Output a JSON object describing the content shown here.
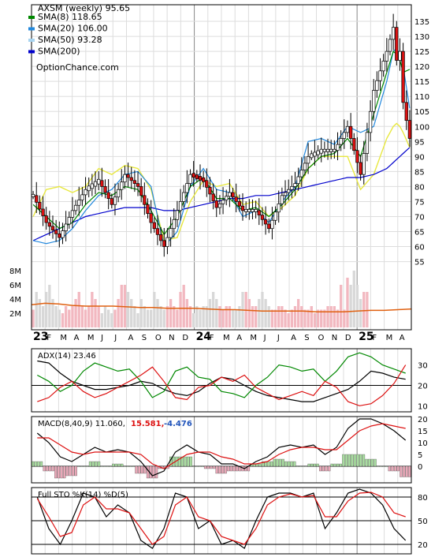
{
  "chart_data": {
    "type": "candlestick",
    "title": "AXSM (weekly) 95.65",
    "watermark": "OptionChance.com",
    "colors": {
      "up": "#ffffff",
      "down": "#dd1111",
      "up_highlight": "#c080d0",
      "sma8": "#008800",
      "sma20": "#2288dd",
      "sma50": "#e8e840",
      "sma200": "#0000cc",
      "volume_up": "#f2b8c0",
      "volume_down": "#d8d8d8",
      "volume_avg": "#e06010",
      "grid": "#dddddd",
      "axis": "#000000"
    },
    "legend": [
      {
        "label": "SMA(8) 118.65",
        "color": "#008800"
      },
      {
        "label": "SMA(20) 106.00",
        "color": "#2288dd"
      },
      {
        "label": "SMA(50) 93.28",
        "color": "#a8d4f0"
      },
      {
        "label": "SMA(200)",
        "color": "#0000cc"
      }
    ],
    "price_axis": {
      "ticks": [
        55,
        60,
        65,
        70,
        75,
        80,
        85,
        90,
        95,
        100,
        105,
        110,
        115,
        120,
        125,
        130,
        135
      ],
      "ylim": [
        52,
        140
      ]
    },
    "volume_axis": {
      "ticks": [
        "2M",
        "4M",
        "6M",
        "8M"
      ],
      "tick_values": [
        2,
        4,
        6,
        8
      ],
      "ylim": [
        0,
        9
      ]
    },
    "x_axis": {
      "labels": [
        "23",
        "F",
        "M",
        "A",
        "M",
        "J",
        "J",
        "A",
        "S",
        "O",
        "N",
        "D",
        "24",
        "F",
        "M",
        "A",
        "M",
        "J",
        "J",
        "A",
        "S",
        "O",
        "N",
        "D",
        "25",
        "F",
        "M",
        "A"
      ],
      "year_labels": [
        "23",
        "24",
        "25"
      ]
    },
    "price_week_index": [
      0,
      4,
      8,
      12,
      16,
      20,
      24,
      28,
      32,
      36,
      40,
      44,
      48,
      52,
      56,
      60,
      64,
      68,
      72,
      76,
      80,
      84,
      88,
      92,
      96,
      100,
      104,
      108,
      110,
      111,
      112,
      113,
      115
    ],
    "close": [
      77,
      68,
      63,
      72,
      79,
      82,
      74,
      84,
      80,
      68,
      60,
      72,
      84,
      82,
      73,
      78,
      72,
      72,
      66,
      77,
      81,
      90,
      92,
      92,
      100,
      84,
      112,
      125,
      133,
      122,
      125,
      108,
      96
    ],
    "sma8": [
      74,
      70,
      66,
      68,
      74,
      78,
      77,
      80,
      79,
      72,
      64,
      70,
      80,
      83,
      76,
      76,
      72,
      73,
      70,
      74,
      79,
      86,
      90,
      91,
      96,
      90,
      104,
      118,
      125,
      124,
      122,
      118,
      119
    ],
    "sma20": [
      62,
      61,
      62,
      66,
      72,
      77,
      79,
      84,
      85,
      80,
      60,
      65,
      80,
      86,
      79,
      78,
      70,
      72,
      68,
      75,
      80,
      95,
      96,
      94,
      100,
      98,
      100,
      115,
      125,
      126,
      124,
      120,
      106
    ],
    "sma50": [
      70,
      79,
      80,
      78,
      80,
      86,
      84,
      87,
      86,
      79,
      62,
      63,
      75,
      82,
      80,
      81,
      74,
      75,
      70,
      73,
      77,
      86,
      90,
      90,
      90,
      79,
      84,
      96,
      100,
      101,
      100,
      98,
      93
    ],
    "sma200": [
      62,
      64,
      66,
      68,
      70,
      71,
      72,
      73,
      73,
      73,
      72,
      72,
      73,
      74,
      75,
      76,
      76,
      77,
      77,
      78,
      79,
      80,
      81,
      82,
      83,
      83,
      84,
      86,
      88,
      89,
      90,
      91,
      93
    ],
    "volume_m": [
      2.5,
      5,
      4,
      3,
      5,
      6,
      4,
      3,
      2.5,
      2,
      3,
      2.5,
      3,
      4,
      5,
      3,
      2.5,
      3,
      5,
      4,
      3,
      2,
      3,
      2.5,
      2,
      2.5,
      4,
      6,
      6,
      5,
      4,
      3,
      2,
      4,
      3,
      2.5,
      2.5,
      5,
      4,
      3,
      2.5,
      3,
      4,
      3,
      2.5,
      5,
      6,
      4,
      3,
      2,
      3,
      2.5,
      3,
      3,
      4,
      5,
      4,
      3,
      2.5,
      3,
      3,
      2.5,
      2.5,
      3,
      5,
      5,
      4,
      3,
      3,
      4,
      5,
      4,
      3,
      2.5,
      2.5,
      3,
      3,
      2.5,
      2,
      2.5,
      3,
      4,
      3,
      2.5,
      2.5,
      3,
      2,
      2.5,
      2.5,
      2.5,
      3,
      3,
      3,
      2.5,
      6,
      2.5,
      7,
      6,
      8,
      6,
      4,
      5,
      5
    ],
    "volume_avg_m": [
      3.2,
      3.4,
      3.3,
      3.1,
      3.0,
      3.0,
      3.0,
      2.9,
      2.8,
      2.8,
      2.7,
      2.7,
      2.7,
      2.6,
      2.5,
      2.5,
      2.4,
      2.3,
      2.3,
      2.3,
      2.3,
      2.2,
      2.2,
      2.2,
      2.3,
      2.4,
      2.4,
      2.5,
      2.6
    ],
    "panels": [
      {
        "id": "adx",
        "label": "ADX(14) 23.46",
        "ticks": [
          10,
          20,
          30
        ],
        "ylim": [
          7,
          38
        ],
        "ref_lines": [
          20
        ],
        "series": [
          {
            "name": "ADX",
            "color": "#000000",
            "values": [
              32,
              31,
              26,
              22,
              20,
              18,
              18,
              19,
              20,
              22,
              21,
              18,
              16,
              15,
              17,
              21,
              24,
              23,
              20,
              17,
              15,
              14,
              13,
              12,
              12,
              14,
              16,
              18,
              22,
              27,
              26,
              24,
              23
            ]
          },
          {
            "name": "+DI",
            "color": "#008800",
            "values": [
              25,
              22,
              17,
              20,
              27,
              31,
              29,
              27,
              28,
              22,
              14,
              17,
              27,
              29,
              24,
              23,
              17,
              16,
              14,
              20,
              24,
              30,
              29,
              27,
              28,
              22,
              27,
              34,
              36,
              34,
              30,
              28,
              26
            ]
          },
          {
            "name": "-DI",
            "color": "#dd1111",
            "values": [
              12,
              14,
              19,
              22,
              17,
              14,
              16,
              19,
              22,
              25,
              29,
              22,
              14,
              13,
              19,
              20,
              24,
              22,
              25,
              19,
              16,
              13,
              15,
              17,
              15,
              22,
              19,
              12,
              10,
              11,
              15,
              21,
              30
            ]
          }
        ]
      },
      {
        "id": "macd",
        "label": "MACD(8,40,9) 11.060,",
        "label_signal": "15.581,",
        "label_hist": "-4.476",
        "label_signal_color": "#dd1111",
        "label_hist_color": "#2255bb",
        "ticks": [
          0,
          5,
          10,
          15,
          20
        ],
        "ylim": [
          -7,
          21
        ],
        "ref_lines": [
          0
        ],
        "series": [
          {
            "name": "MACD",
            "color": "#000000",
            "values": [
              14,
              10,
              4,
              2,
              5,
              8,
              6,
              7,
              6,
              2,
              -4,
              -2,
              6,
              9,
              6,
              5,
              1,
              1,
              -1,
              2,
              4,
              8,
              9,
              8,
              9,
              5,
              8,
              16,
              20,
              20,
              18,
              15,
              11
            ]
          },
          {
            "name": "Signal",
            "color": "#dd1111",
            "values": [
              12,
              12,
              9,
              6,
              5,
              6,
              6,
              6,
              6,
              5,
              1,
              -1,
              2,
              5,
              6,
              6,
              4,
              3,
              1,
              1,
              2,
              5,
              7,
              8,
              8,
              7,
              7,
              11,
              15,
              17,
              18,
              17,
              16
            ]
          }
        ],
        "histogram": [
          2,
          -2,
          -5,
          -4,
          0,
          2,
          0,
          1,
          0,
          -3,
          -5,
          -1,
          4,
          4,
          0,
          -1,
          -3,
          -2,
          -2,
          1,
          2,
          3,
          2,
          0,
          1,
          -2,
          1,
          5,
          5,
          3,
          0,
          -2,
          -4.5
        ]
      },
      {
        "id": "sto",
        "label": "Full STO %K(14) %D(5)",
        "ticks": [
          20,
          50,
          80
        ],
        "ylim": [
          8,
          92
        ],
        "ref_lines": [
          20,
          50,
          80
        ],
        "series": [
          {
            "name": "%K",
            "color": "#000000",
            "values": [
              80,
              40,
              20,
              50,
              85,
              80,
              55,
              70,
              60,
              25,
              15,
              40,
              85,
              80,
              40,
              50,
              20,
              25,
              15,
              50,
              80,
              85,
              85,
              80,
              85,
              40,
              60,
              85,
              90,
              85,
              70,
              40,
              25
            ]
          },
          {
            "name": "%D",
            "color": "#dd1111",
            "values": [
              78,
              55,
              30,
              35,
              70,
              80,
              65,
              65,
              60,
              40,
              20,
              30,
              70,
              80,
              55,
              50,
              30,
              25,
              20,
              40,
              70,
              80,
              84,
              80,
              82,
              55,
              55,
              75,
              85,
              86,
              80,
              60,
              55
            ]
          }
        ]
      }
    ]
  }
}
